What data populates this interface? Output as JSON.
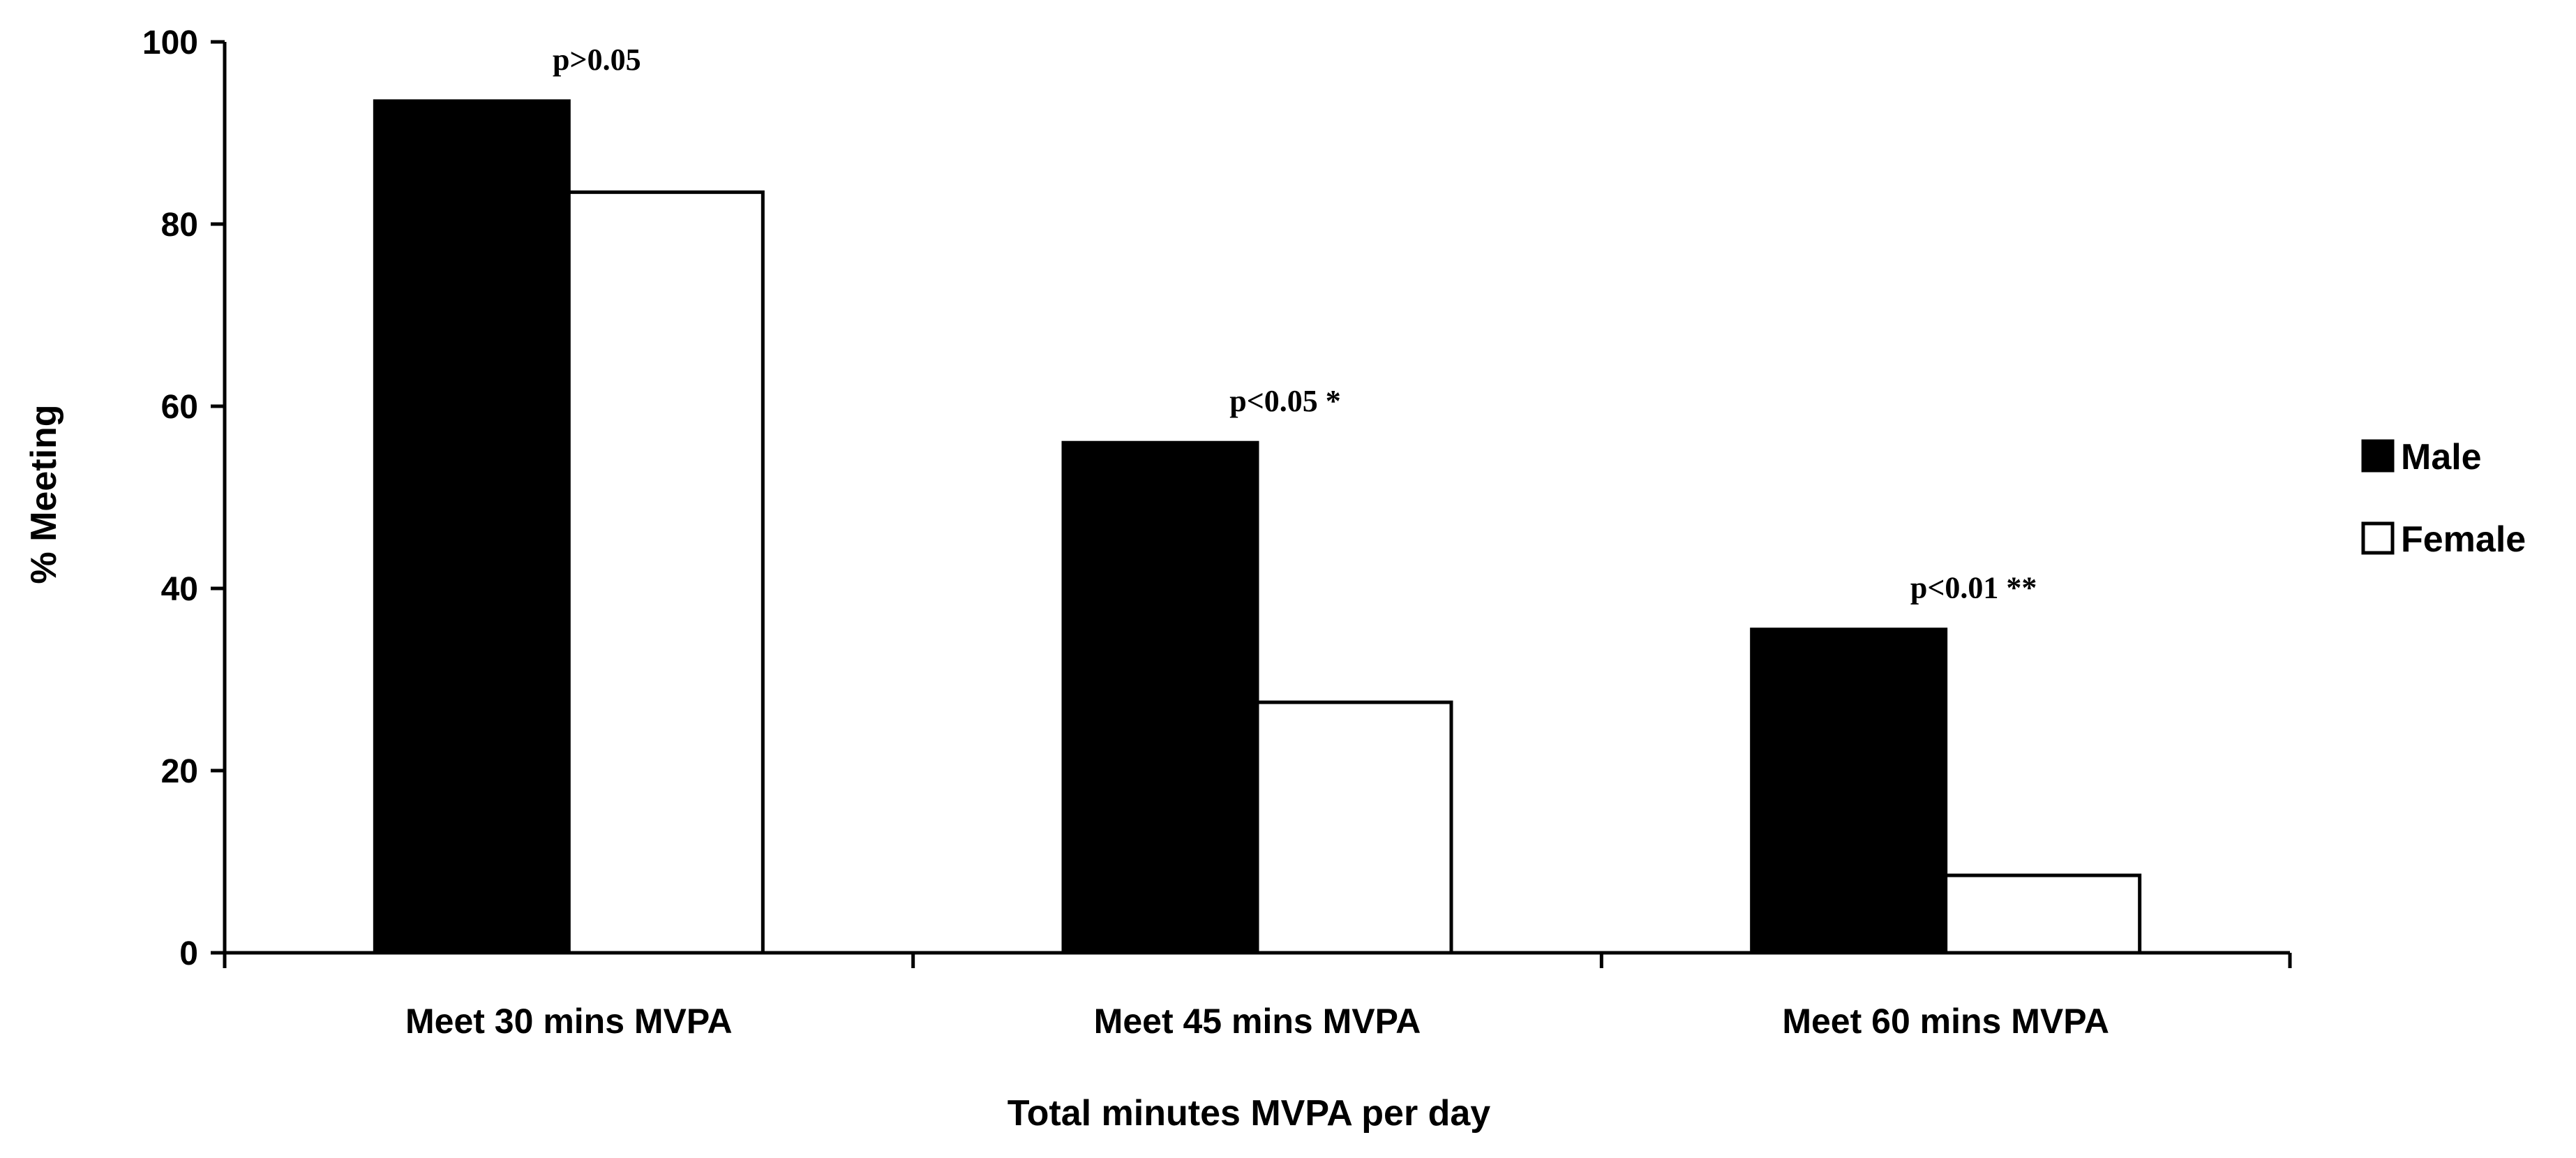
{
  "chart_data": {
    "type": "bar",
    "title": "",
    "xlabel": "Total minutes MVPA per day",
    "ylabel": "% Meeting",
    "ylim": [
      0,
      100
    ],
    "yticks": [
      0,
      20,
      40,
      60,
      80,
      100
    ],
    "grid": false,
    "legend_position": "right",
    "categories": [
      "Meet 30 mins MVPA",
      "Meet 45 mins MVPA",
      "Meet 60 mins MVPA"
    ],
    "series": [
      {
        "name": "Male",
        "values": [
          93.5,
          56.0,
          35.5
        ],
        "color": "#000000"
      },
      {
        "name": "Female",
        "values": [
          83.5,
          27.5,
          8.5
        ],
        "color": "#ffffff"
      }
    ],
    "annotations": [
      "p>0.05",
      "p<0.05 *",
      "p<0.01 **"
    ]
  }
}
